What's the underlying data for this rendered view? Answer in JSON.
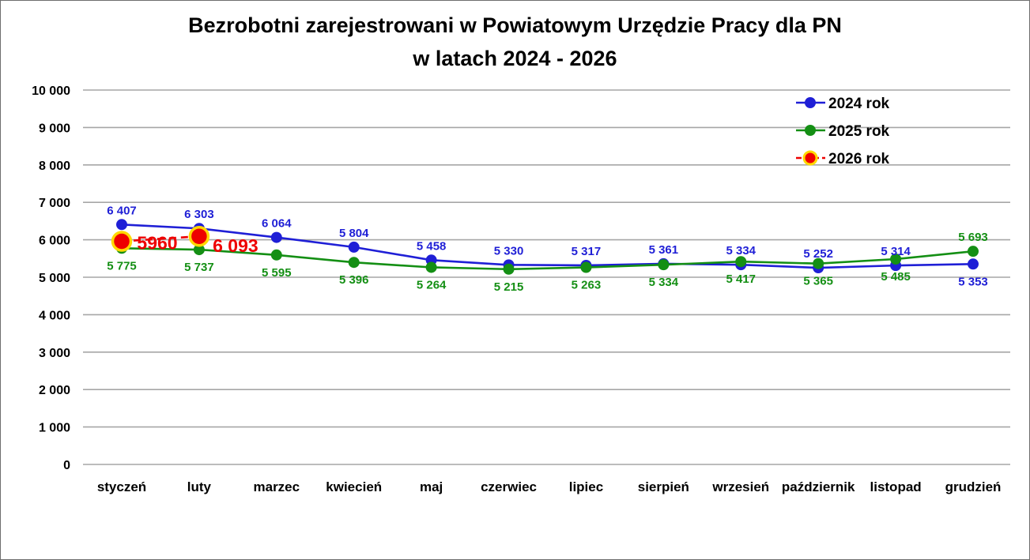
{
  "title": {
    "line1": "Bezrobotni zarejestrowani w Powiatowym Urzędzie Pracy dla PN",
    "line2": "w latach 2024 - 2026"
  },
  "colors": {
    "background": "#ffffff",
    "border": "#6e6e6e",
    "grid": "#a6a6a6",
    "text": "#000000",
    "series_2024": "#1f1fd6",
    "series_2025": "#148f14",
    "series_2026": "#ee0000",
    "series_2026_marker_ring": "#ffd800"
  },
  "chart_data": {
    "type": "line",
    "title": "Bezrobotni zarejestrowani w Powiatowym Urzędzie Pracy dla PN w latach 2024 - 2026",
    "categories": [
      "styczeń",
      "luty",
      "marzec",
      "kwiecień",
      "maj",
      "czerwiec",
      "lipiec",
      "sierpień",
      "wrzesień",
      "październik",
      "listopad",
      "grudzień"
    ],
    "xlabel": "",
    "ylabel": "",
    "ylim": [
      0,
      10000
    ],
    "grid": true,
    "legend_position": "top-right",
    "y_axis": {
      "min": 0,
      "max": 10000,
      "step": 1000,
      "tick_labels": [
        "0",
        "1 000",
        "2 000",
        "3 000",
        "4 000",
        "5 000",
        "6 000",
        "7 000",
        "8 000",
        "9 000",
        "10 000"
      ]
    },
    "series": [
      {
        "name": "2024 rok",
        "color": "#1f1fd6",
        "dashed": false,
        "marker": "circle",
        "values": [
          6407,
          6303,
          6064,
          5804,
          5458,
          5330,
          5317,
          5361,
          5334,
          5252,
          5314,
          5353
        ],
        "labels": [
          "6 407",
          "6 303",
          "6 064",
          "5 804",
          "5 458",
          "5 330",
          "5 317",
          "5 361",
          "5 334",
          "5 252",
          "5 314",
          "5 353"
        ],
        "label_pos": [
          "above",
          "above",
          "above",
          "above",
          "above",
          "above",
          "above",
          "above",
          "above",
          "above",
          "above",
          "below"
        ]
      },
      {
        "name": "2025 rok",
        "color": "#148f14",
        "dashed": false,
        "marker": "circle",
        "values": [
          5775,
          5737,
          5595,
          5396,
          5264,
          5215,
          5263,
          5334,
          5417,
          5365,
          5485,
          5693
        ],
        "labels": [
          "5 775",
          "5 737",
          "5 595",
          "5 396",
          "5 264",
          "5 215",
          "5 263",
          "5 334",
          "5 417",
          "5 365",
          "5 485",
          "5 693"
        ],
        "label_pos": [
          "below",
          "below",
          "below",
          "below",
          "below",
          "below",
          "below",
          "below",
          "below",
          "below",
          "below",
          "above"
        ]
      },
      {
        "name": "2026 rok",
        "color": "#ee0000",
        "marker_ring": "#ffd800",
        "dashed": true,
        "marker": "big-circle",
        "values": [
          5960,
          6093,
          null,
          null,
          null,
          null,
          null,
          null,
          null,
          null,
          null,
          null
        ],
        "labels": [
          "5960",
          "6 093"
        ],
        "label_offsets": [
          {
            "dx": 45,
            "dy": 2
          },
          {
            "dx": 46,
            "dy": 12
          }
        ]
      }
    ]
  }
}
